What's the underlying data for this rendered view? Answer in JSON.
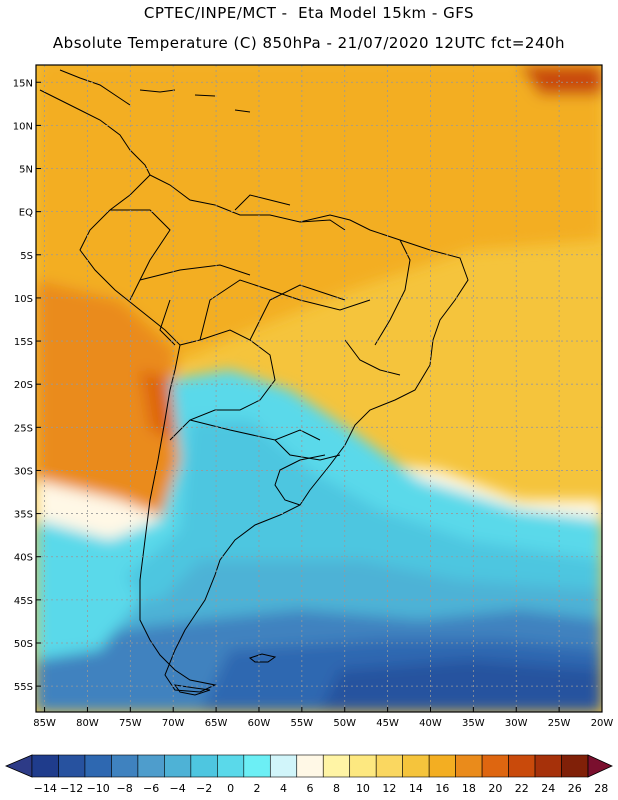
{
  "header": {
    "line1": "CPTEC/INPE/MCT -  Eta Model 15km - GFS",
    "line2": "Absolute Temperature (C) 850hPa - 21/07/2020 12UTC fct=240h"
  },
  "map": {
    "lat_labels": [
      "15N",
      "10N",
      "5N",
      "EQ",
      "5S",
      "10S",
      "15S",
      "20S",
      "25S",
      "30S",
      "35S",
      "40S",
      "45S",
      "50S",
      "55S"
    ],
    "lat_values": [
      15,
      10,
      5,
      0,
      -5,
      -10,
      -15,
      -20,
      -25,
      -30,
      -35,
      -40,
      -45,
      -50,
      -55
    ],
    "lon_labels": [
      "85W",
      "80W",
      "75W",
      "70W",
      "65W",
      "60W",
      "55W",
      "50W",
      "45W",
      "40W",
      "35W",
      "30W",
      "25W",
      "20W"
    ],
    "lon_values": [
      -85,
      -80,
      -75,
      -70,
      -65,
      -60,
      -55,
      -50,
      -45,
      -40,
      -35,
      -30,
      -25,
      -20
    ],
    "lat_range": [
      -58,
      17
    ],
    "lon_range": [
      -86,
      -20
    ]
  },
  "colorbar": {
    "labels": [
      "-14",
      "-12",
      "-10",
      "-8",
      "-6",
      "-4",
      "-2",
      "0",
      "2",
      "4",
      "6",
      "8",
      "10",
      "12",
      "14",
      "16",
      "18",
      "20",
      "22",
      "24",
      "26",
      "28"
    ],
    "colors": [
      "#1f3c8c",
      "#27529f",
      "#2e68b1",
      "#3f82bf",
      "#4e9dcc",
      "#4eb2d6",
      "#4ec6e0",
      "#5ad9ea",
      "#6ceff5",
      "#d1f5fa",
      "#fff8e6",
      "#fff4a5",
      "#fde880",
      "#fad760",
      "#f5c43c",
      "#f3ae22",
      "#ea8b1b",
      "#de6610",
      "#c94a0b",
      "#a6310a",
      "#802008"
    ],
    "under_color": "#2d3b87",
    "over_color": "#7a0f2e"
  }
}
